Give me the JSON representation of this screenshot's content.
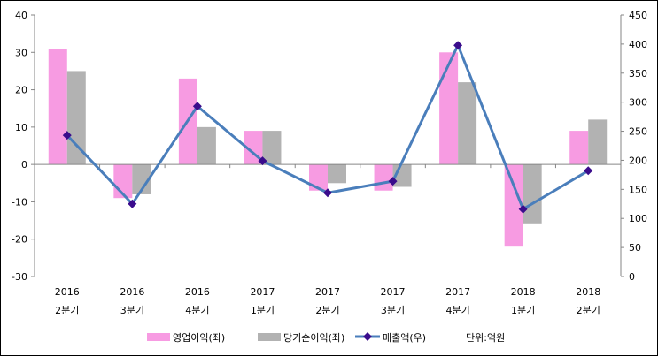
{
  "chart_data": {
    "type": "bar",
    "categories": [
      [
        "2016",
        "2분기"
      ],
      [
        "2016",
        "3분기"
      ],
      [
        "2016",
        "4분기"
      ],
      [
        "2017",
        "1분기"
      ],
      [
        "2017",
        "2분기"
      ],
      [
        "2017",
        "3분기"
      ],
      [
        "2017",
        "4분기"
      ],
      [
        "2018",
        "1분기"
      ],
      [
        "2018",
        "2분기"
      ]
    ],
    "series": [
      {
        "name": "영업이익(좌)",
        "type": "bar",
        "axis": "left",
        "color": "#f79be2",
        "values": [
          31,
          -9,
          23,
          9,
          -7,
          -7,
          30,
          -22,
          9
        ]
      },
      {
        "name": "당기순이익(좌)",
        "type": "bar",
        "axis": "left",
        "color": "#b2b2b2",
        "values": [
          25,
          -8,
          10,
          9,
          -5,
          -6,
          22,
          -16,
          12
        ]
      },
      {
        "name": "매출액(우)",
        "type": "line",
        "axis": "right",
        "color": "#4a7ebb",
        "marker_color": "#3a0c8c",
        "values": [
          243,
          125,
          293,
          199,
          144,
          164,
          398,
          116,
          182
        ]
      }
    ],
    "left_axis": {
      "ylim": [
        -30,
        40
      ],
      "ticks": [
        40,
        30,
        20,
        10,
        0,
        -10,
        -20,
        -30
      ]
    },
    "right_axis": {
      "ylim": [
        0,
        450
      ],
      "ticks": [
        450,
        400,
        350,
        300,
        250,
        200,
        150,
        100,
        50,
        0
      ]
    },
    "unit_note": "단위:억원",
    "legend_position": "bottom",
    "grid": false
  }
}
